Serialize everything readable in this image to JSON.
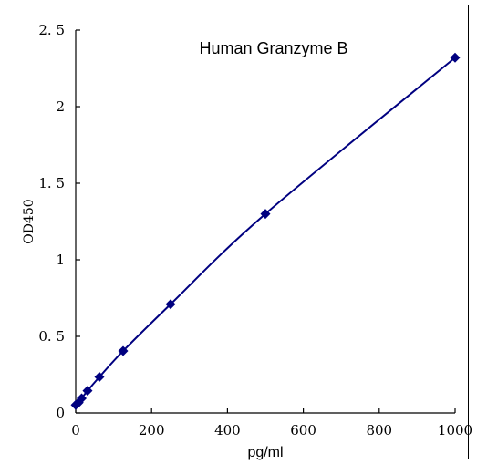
{
  "chart_data": {
    "type": "scatter",
    "title": "Human Granzyme B",
    "xlabel": "pg/ml",
    "ylabel": "OD450",
    "xlim": [
      0,
      1000
    ],
    "ylim": [
      0,
      2.5
    ],
    "x_ticks": [
      0,
      200,
      400,
      600,
      800,
      1000
    ],
    "x_tick_labels": [
      "0",
      "200",
      "400",
      "600",
      "800",
      "1000"
    ],
    "y_ticks": [
      0,
      0.5,
      1,
      1.5,
      2,
      2.5
    ],
    "y_tick_labels": [
      "0",
      "0. 5",
      "1",
      "1. 5",
      "2",
      "2. 5"
    ],
    "grid": false,
    "series": [
      {
        "x": [
          0,
          7.8,
          15.6,
          31.2,
          62.5,
          125,
          250,
          500,
          1000
        ],
        "y": [
          0.052,
          0.068,
          0.095,
          0.145,
          0.235,
          0.405,
          0.71,
          1.3,
          2.32
        ],
        "marker": "diamond",
        "line": "smooth",
        "color": "#000080"
      }
    ]
  }
}
